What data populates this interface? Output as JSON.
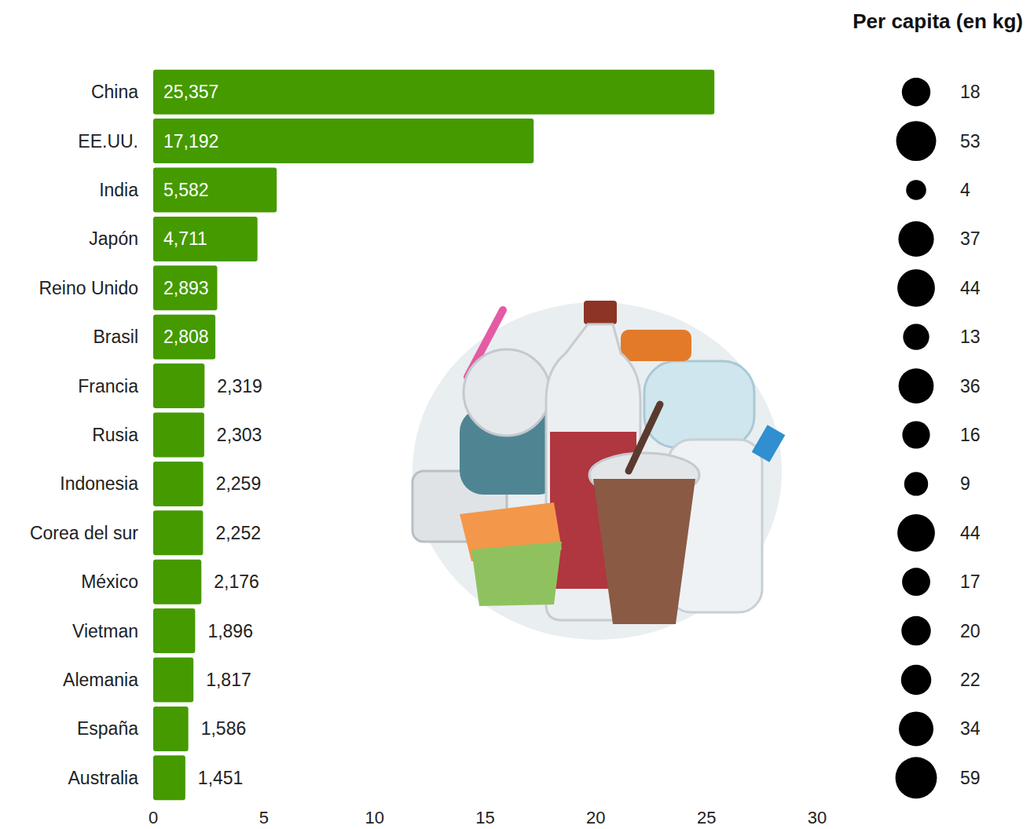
{
  "chart_data": {
    "type": "bar",
    "orientation": "horizontal",
    "categories": [
      "China",
      "EE.UU.",
      "India",
      "Japón",
      "Reino Unido",
      "Brasil",
      "Francia",
      "Rusia",
      "Indonesia",
      "Corea del sur",
      "México",
      "Vietman",
      "Alemania",
      "España",
      "Australia"
    ],
    "values": [
      25.357,
      17.192,
      5.582,
      4.711,
      2.893,
      2.808,
      2.319,
      2.303,
      2.259,
      2.252,
      2.176,
      1.896,
      1.817,
      1.586,
      1.451
    ],
    "value_labels": [
      "25,357",
      "17,192",
      "5,582",
      "4,711",
      "2,893",
      "2,808",
      "2,319",
      "2,303",
      "2,259",
      "2,252",
      "2,176",
      "1,896",
      "1,817",
      "1,586",
      "1,451"
    ],
    "data_labels": true,
    "color": "#459a00",
    "xlim": [
      0,
      30
    ],
    "xticks": [
      0,
      5,
      10,
      15,
      20,
      25,
      30
    ],
    "grid": false,
    "per_capita_title": "Per capita (en kg)",
    "per_capita": [
      18,
      53,
      4,
      37,
      44,
      13,
      36,
      16,
      9,
      44,
      17,
      20,
      22,
      34,
      59
    ]
  }
}
